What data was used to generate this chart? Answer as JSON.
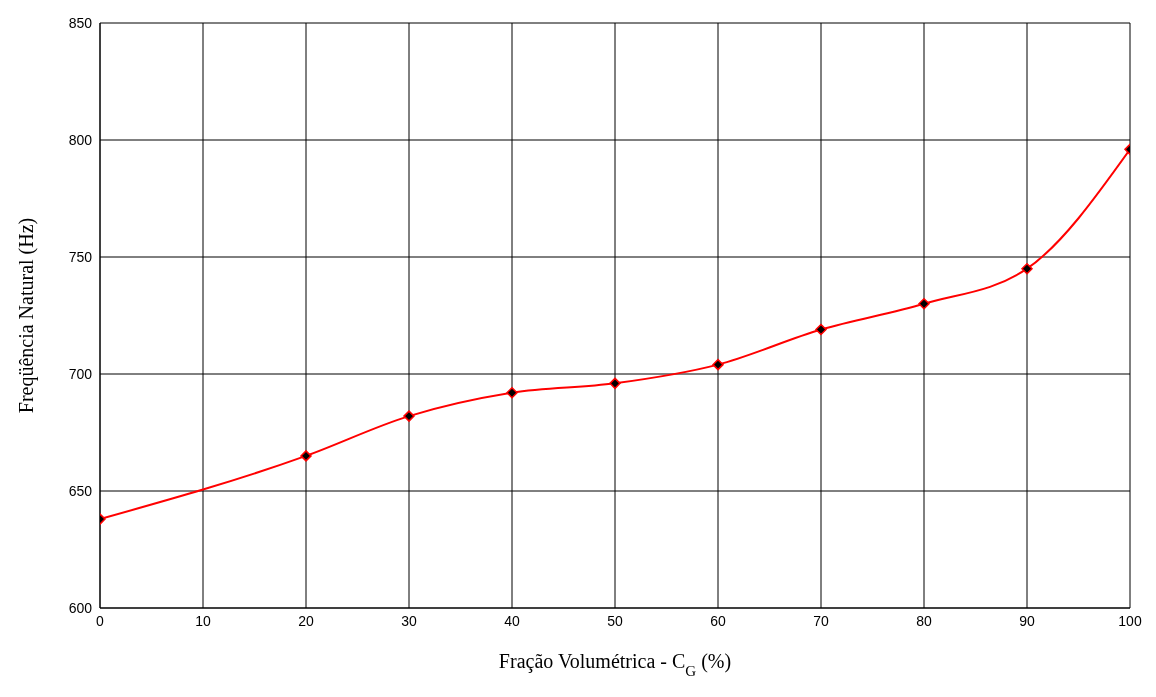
{
  "chart_data": {
    "type": "line",
    "xlabel": "Fração Volumétrica - C$_{G}$ (%)",
    "ylabel": "Freqüência Natural (Hz)",
    "x": [
      0,
      20,
      30,
      40,
      50,
      60,
      70,
      80,
      90,
      100
    ],
    "series": [
      {
        "color": "#ff0000",
        "values": [
          638,
          665,
          682,
          692,
          696,
          704,
          719,
          730,
          745,
          796
        ]
      }
    ],
    "xlim": [
      0,
      100
    ],
    "xticks": [
      0,
      10,
      20,
      30,
      40,
      50,
      60,
      70,
      80,
      90,
      100
    ],
    "ylim": [
      600,
      850
    ],
    "yticks": [
      600,
      650,
      700,
      750,
      800,
      850
    ],
    "grid": true,
    "marker": "diamond",
    "line_style": "solid",
    "legend": false
  }
}
